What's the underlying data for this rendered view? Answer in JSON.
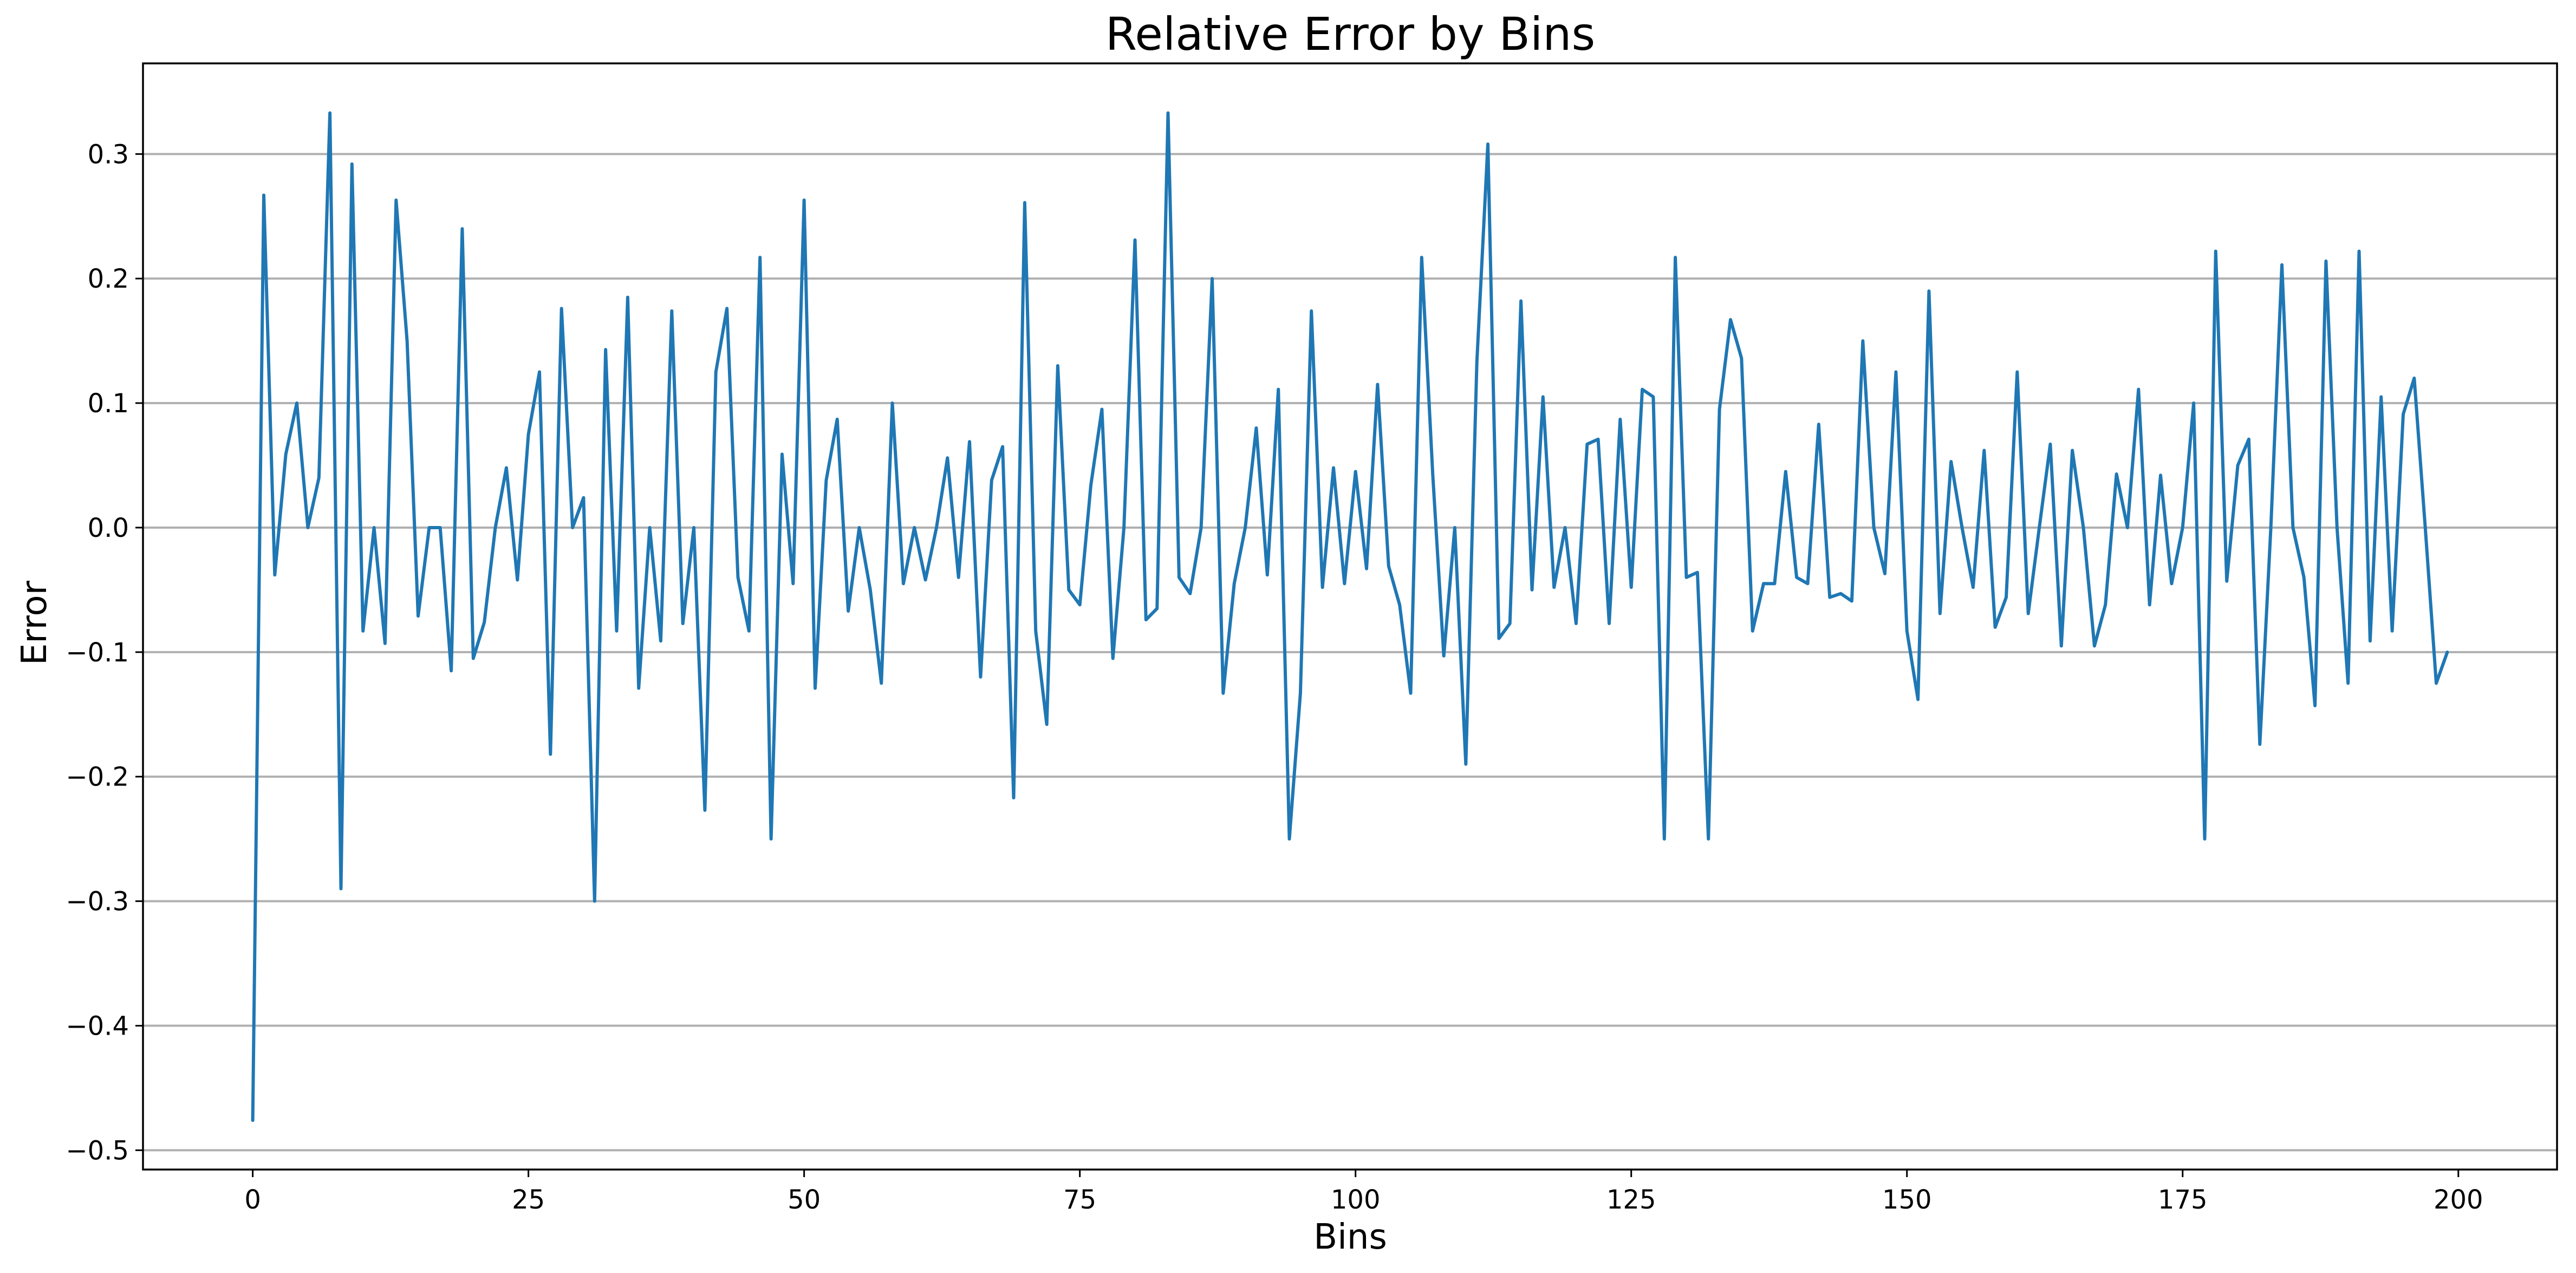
{
  "chart_data": {
    "type": "line",
    "title": "Relative Error by Bins",
    "xlabel": "Bins",
    "ylabel": "Error",
    "xlim": [
      -9.95,
      208.95
    ],
    "ylim": [
      -0.5155,
      0.3728
    ],
    "xticks": [
      0,
      25,
      50,
      75,
      100,
      125,
      150,
      175,
      200
    ],
    "xtick_labels": [
      "0",
      "25",
      "50",
      "75",
      "100",
      "125",
      "150",
      "175",
      "200"
    ],
    "yticks": [
      -0.5,
      -0.4,
      -0.3,
      -0.2,
      -0.1,
      0.0,
      0.1,
      0.2,
      0.3
    ],
    "ytick_labels": [
      "−0.5",
      "−0.4",
      "−0.3",
      "−0.2",
      "−0.1",
      "0.0",
      "0.1",
      "0.2",
      "0.3"
    ],
    "grid": {
      "y": true,
      "x": false
    },
    "colors": {
      "series": "#1f77b4",
      "grid": "#b0b0b0",
      "axes": "#000000"
    },
    "series": [
      {
        "x_start": 0,
        "x_step": 1,
        "values": [
          -0.476,
          0.267,
          -0.038,
          0.059,
          0.1,
          0.0,
          0.04,
          0.333,
          -0.29,
          0.292,
          -0.083,
          0.0,
          -0.093,
          0.263,
          0.15,
          -0.071,
          0.0,
          0.0,
          -0.115,
          0.24,
          -0.105,
          -0.076,
          0.0,
          0.048,
          -0.042,
          0.075,
          0.125,
          -0.182,
          0.176,
          0.0,
          0.024,
          -0.3,
          0.143,
          -0.083,
          0.185,
          -0.129,
          0.0,
          -0.091,
          0.174,
          -0.077,
          0.0,
          -0.227,
          0.125,
          0.176,
          -0.04,
          -0.083,
          0.217,
          -0.25,
          0.059,
          -0.045,
          0.263,
          -0.129,
          0.038,
          0.087,
          -0.067,
          0.0,
          -0.05,
          -0.125,
          0.1,
          -0.045,
          0.0,
          -0.042,
          0.0,
          0.056,
          -0.04,
          0.069,
          -0.12,
          0.038,
          0.065,
          -0.217,
          0.261,
          -0.083,
          -0.158,
          0.13,
          -0.05,
          -0.062,
          0.034,
          0.095,
          -0.105,
          0.0,
          0.231,
          -0.074,
          -0.065,
          0.333,
          -0.04,
          -0.053,
          0.0,
          0.2,
          -0.133,
          -0.045,
          0.0,
          0.08,
          -0.038,
          0.111,
          -0.25,
          -0.133,
          0.174,
          -0.048,
          0.048,
          -0.045,
          0.045,
          -0.033,
          0.115,
          -0.031,
          -0.062,
          -0.133,
          0.217,
          0.043,
          -0.103,
          0.0,
          -0.19,
          0.133,
          0.308,
          -0.089,
          -0.077,
          0.182,
          -0.05,
          0.105,
          -0.048,
          0.0,
          -0.077,
          0.067,
          0.071,
          -0.077,
          0.087,
          -0.048,
          0.111,
          0.105,
          -0.25,
          0.217,
          -0.04,
          -0.036,
          -0.25,
          0.095,
          0.167,
          0.136,
          -0.083,
          -0.045,
          -0.045,
          0.045,
          -0.04,
          -0.045,
          0.083,
          -0.056,
          -0.053,
          -0.059,
          0.15,
          0.0,
          -0.037,
          0.125,
          -0.083,
          -0.138,
          0.19,
          -0.069,
          0.053,
          0.0,
          -0.048,
          0.062,
          -0.08,
          -0.056,
          0.125,
          -0.069,
          0.0,
          0.067,
          -0.095,
          0.062,
          0.0,
          -0.095,
          -0.062,
          0.043,
          0.0,
          0.111,
          -0.062,
          0.042,
          -0.045,
          0.0,
          0.1,
          -0.25,
          0.222,
          -0.043,
          0.05,
          0.071,
          -0.174,
          0.0,
          0.211,
          0.0,
          -0.04,
          -0.143,
          0.214,
          0.0,
          -0.125,
          0.222,
          -0.091,
          0.105,
          -0.083,
          0.091,
          0.12,
          0.0,
          -0.125,
          -0.1
        ]
      }
    ]
  }
}
